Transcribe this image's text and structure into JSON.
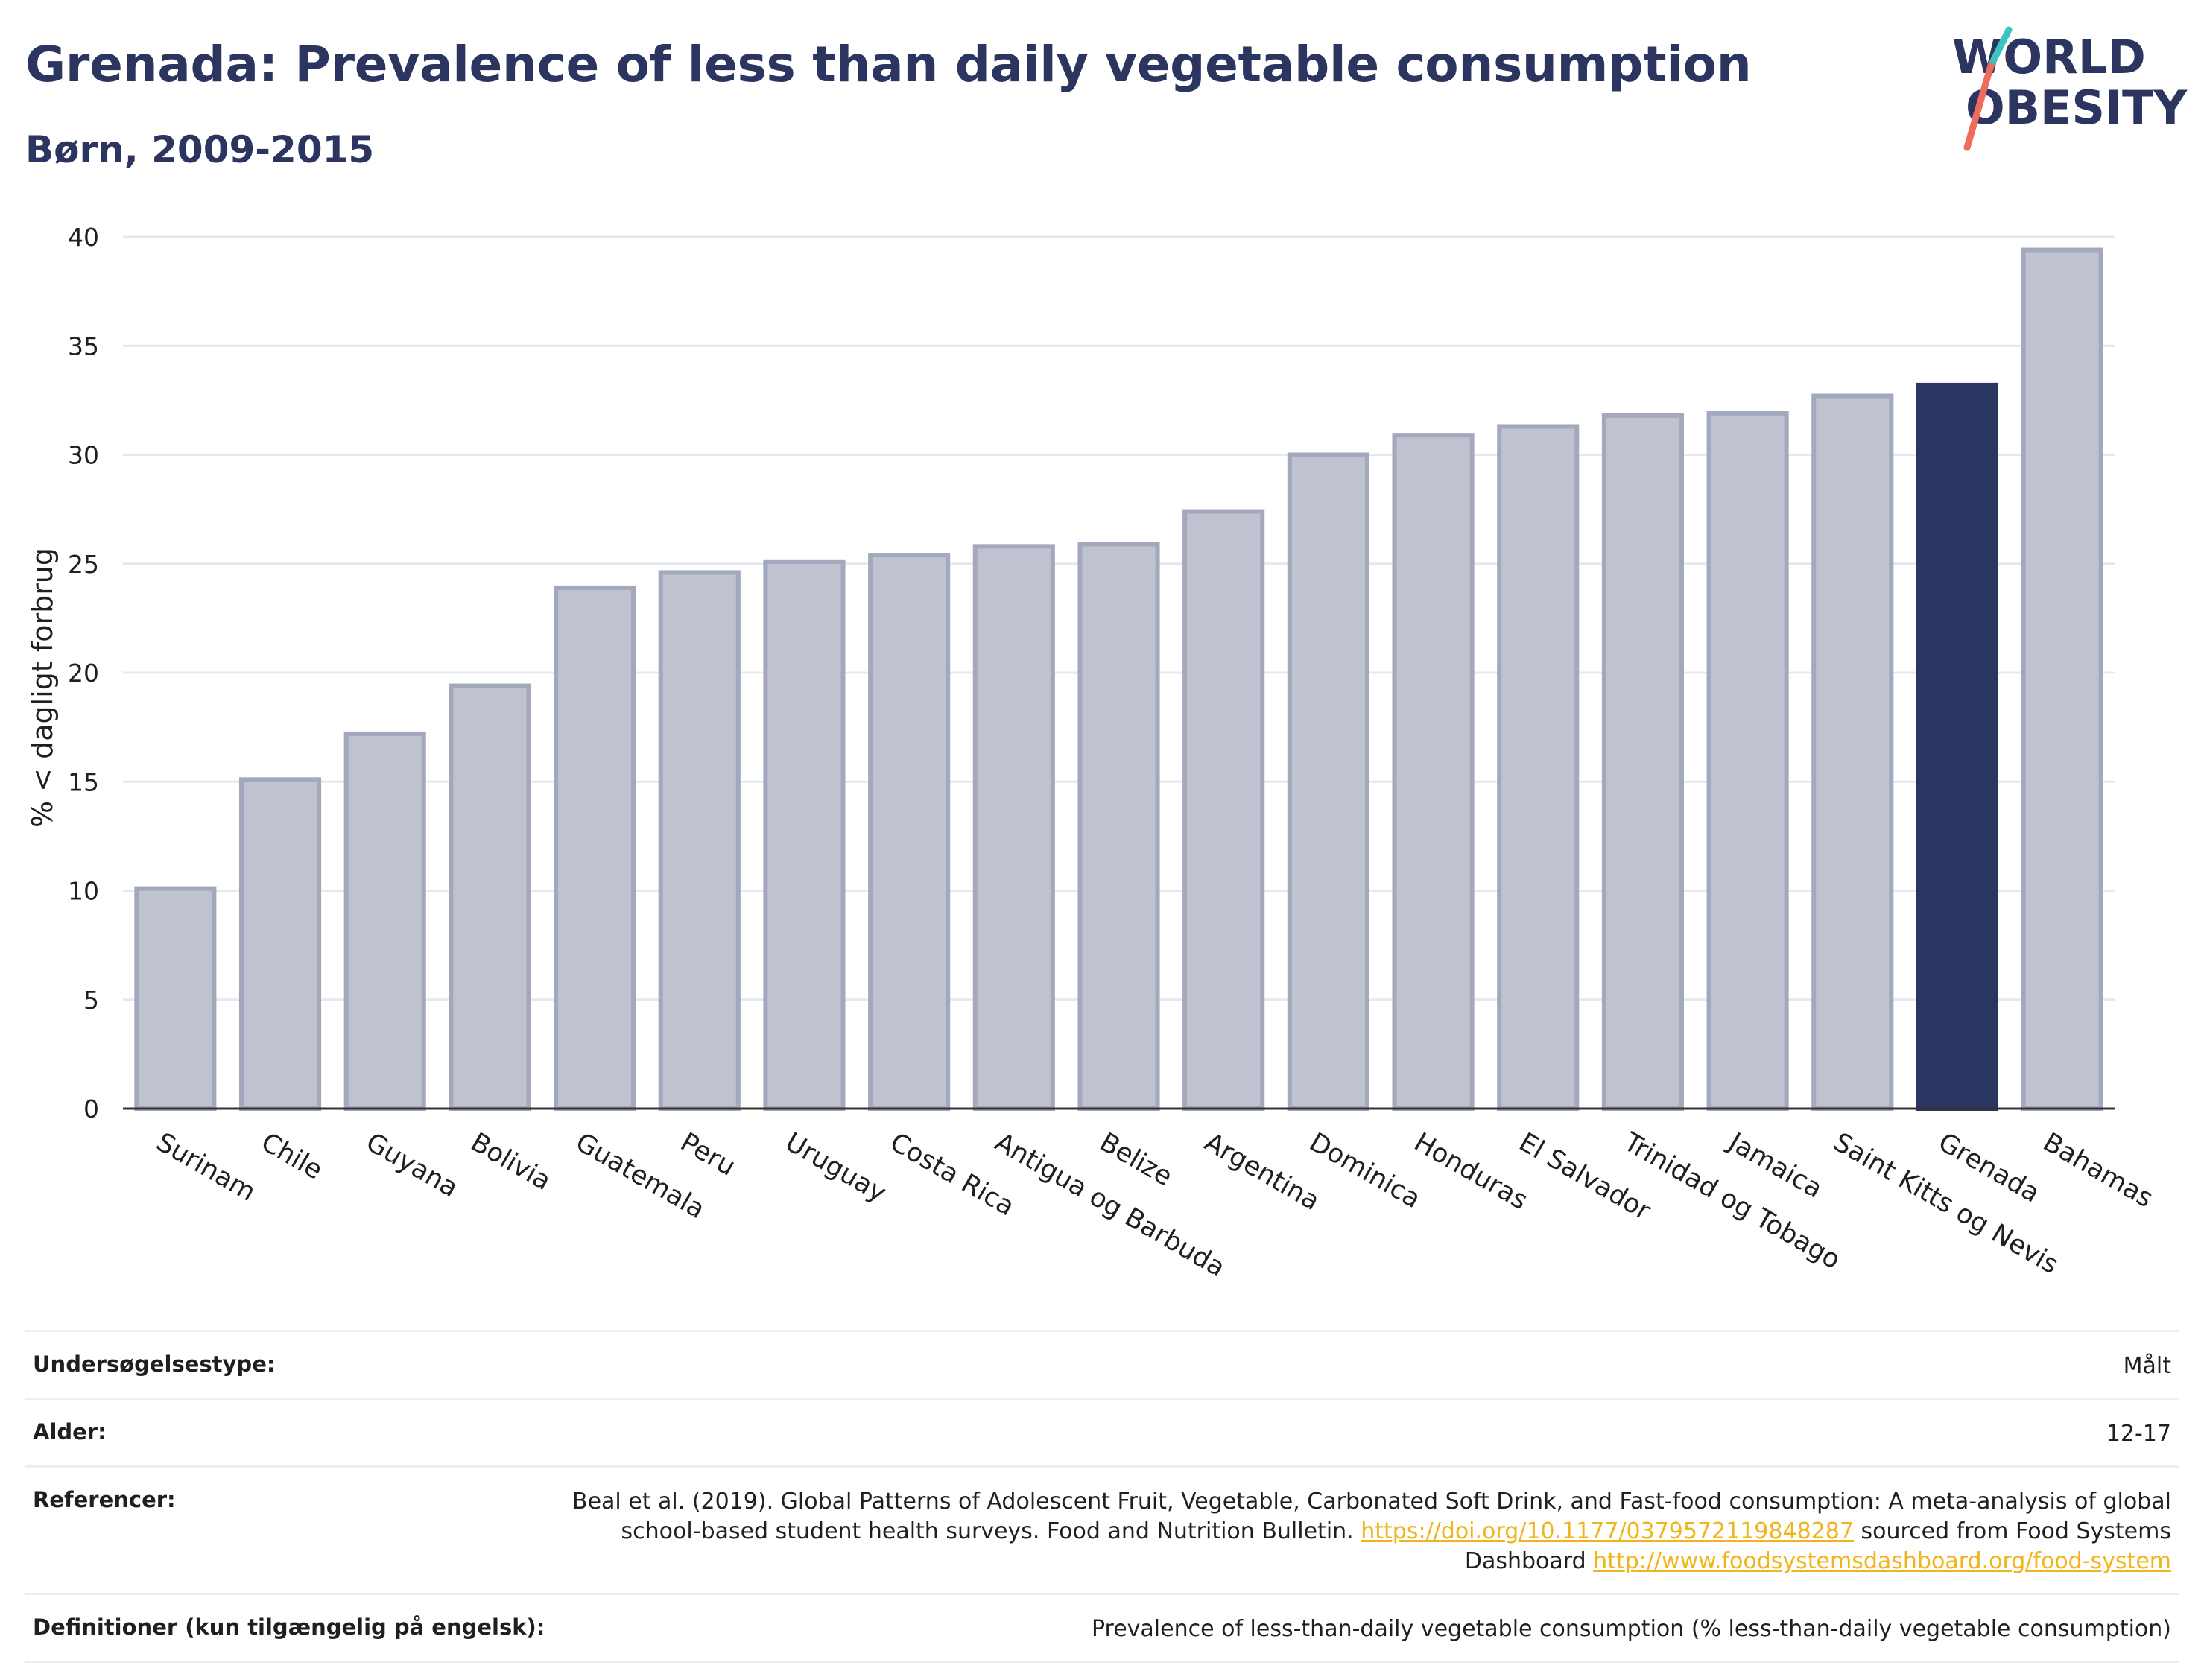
{
  "header": {
    "title": "Grenada: Prevalence of less than daily vegetable consumption",
    "subtitle": "Børn, 2009-2015",
    "logo_line1": "WORLD",
    "logo_line2": "OBESITY"
  },
  "colors": {
    "bar_default": "#bfc2cf",
    "bar_default_stroke": "#a3a8bc",
    "bar_highlight": "#2b3561",
    "title": "#2c3560",
    "link": "#f0b41c",
    "logo_teal": "#3cc2c0",
    "logo_coral": "#ee6b5d"
  },
  "chart_data": {
    "type": "bar",
    "ylabel": "% < dagligt forbrug",
    "ylim": [
      0,
      40
    ],
    "yticks": [
      0,
      5,
      10,
      15,
      20,
      25,
      30,
      35,
      40
    ],
    "grid": true,
    "highlight": "Grenada",
    "categories": [
      "Surinam",
      "Chile",
      "Guyana",
      "Bolivia",
      "Guatemala",
      "Peru",
      "Uruguay",
      "Costa Rica",
      "Antigua og Barbuda",
      "Belize",
      "Argentina",
      "Dominica",
      "Honduras",
      "El Salvador",
      "Trinidad og Tobago",
      "Jamaica",
      "Saint Kitts og Nevis",
      "Grenada",
      "Bahamas"
    ],
    "values": [
      10.1,
      15.1,
      17.2,
      19.4,
      23.9,
      24.6,
      25.1,
      25.4,
      25.8,
      25.9,
      27.4,
      30.0,
      30.9,
      31.3,
      31.8,
      31.9,
      32.7,
      33.2,
      39.4
    ]
  },
  "meta": {
    "rows": [
      {
        "key": "Undersøgelsestype:",
        "value": "Målt"
      },
      {
        "key": "Alder:",
        "value": "12-17"
      },
      {
        "key": "Referencer:",
        "value_text1": "Beal et al. (2019). Global Patterns of Adolescent Fruit, Vegetable, Carbonated Soft Drink, and Fast-food consumption: A meta-analysis of global school-based student health surveys. Food and Nutrition Bulletin. ",
        "value_link1": "https://doi.org/10.1177/0379572119848287",
        "value_text2": " sourced from Food Systems Dashboard ",
        "value_link2": "http://www.foodsystemsdashboard.org/food-system"
      },
      {
        "key": "Definitioner (kun tilgængelig på engelsk):",
        "value": "Prevalence of less-than-daily vegetable consumption (% less-than-daily vegetable consumption)"
      }
    ]
  }
}
